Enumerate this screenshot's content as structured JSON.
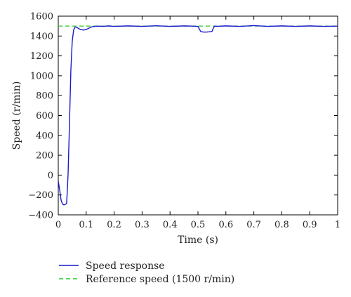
{
  "chart_data": {
    "type": "line",
    "title": "",
    "xlabel": "Time (s)",
    "ylabel": "Speed (r/min)",
    "xlim": [
      0,
      1
    ],
    "ylim": [
      -400,
      1600
    ],
    "xticks": [
      0,
      0.1,
      0.2,
      0.3,
      0.4,
      0.5,
      0.6,
      0.7,
      0.8,
      0.9,
      1
    ],
    "xtick_labels": [
      "0",
      "0.1",
      "0.2",
      "0.3",
      "0.4",
      "0.5",
      "0.6",
      "0.7",
      "0.8",
      "0.9",
      "1"
    ],
    "yticks": [
      -400,
      -200,
      0,
      200,
      400,
      600,
      800,
      1000,
      1200,
      1400,
      1600
    ],
    "ytick_labels": [
      "−400",
      "−200",
      "0",
      "200",
      "400",
      "600",
      "800",
      "1000",
      "1200",
      "1400",
      "1600"
    ],
    "grid": false,
    "legend": "bottom-left",
    "series": [
      {
        "name": "Speed response",
        "color": "#1a1acc",
        "style": "solid",
        "x": [
          0,
          0.005,
          0.01,
          0.015,
          0.02,
          0.025,
          0.03,
          0.035,
          0.04,
          0.045,
          0.05,
          0.055,
          0.06,
          0.065,
          0.07,
          0.08,
          0.09,
          0.1,
          0.11,
          0.12,
          0.13,
          0.14,
          0.16,
          0.18,
          0.2,
          0.25,
          0.3,
          0.35,
          0.4,
          0.45,
          0.48,
          0.5,
          0.505,
          0.51,
          0.52,
          0.53,
          0.54,
          0.55,
          0.555,
          0.56,
          0.57,
          0.6,
          0.65,
          0.7,
          0.75,
          0.8,
          0.85,
          0.9,
          0.95,
          1.0
        ],
        "y": [
          -60,
          -150,
          -250,
          -290,
          -300,
          -295,
          -285,
          0,
          500,
          1050,
          1350,
          1460,
          1490,
          1490,
          1480,
          1465,
          1460,
          1465,
          1480,
          1492,
          1497,
          1500,
          1497,
          1502,
          1497,
          1502,
          1497,
          1503,
          1497,
          1502,
          1500,
          1497,
          1470,
          1445,
          1440,
          1440,
          1442,
          1445,
          1480,
          1500,
          1498,
          1502,
          1497,
          1505,
          1497,
          1502,
          1497,
          1502,
          1497,
          1500
        ]
      },
      {
        "name": "Reference speed (1500 r/min)",
        "color": "#22cc22",
        "style": "dashed",
        "x": [
          0,
          1
        ],
        "y": [
          1500,
          1500
        ]
      }
    ]
  }
}
